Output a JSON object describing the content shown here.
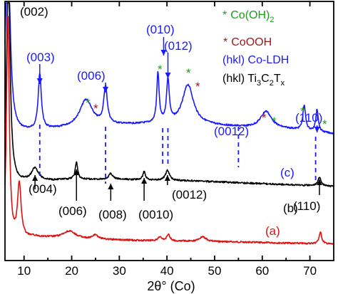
{
  "chart_data": {
    "type": "line",
    "xlabel": "2θ° (Co)",
    "ylabel": "",
    "xlim": [
      6,
      75
    ],
    "x_ticks": [
      10,
      20,
      30,
      40,
      50,
      60,
      70
    ],
    "grid": false,
    "colors": {
      "c": "#1a1aff",
      "b": "#000000",
      "a": "#e01010",
      "co_oh2": "#18a018",
      "coooh": "#a01818"
    },
    "series": [
      {
        "name": "(c)",
        "color": "#1a1aff",
        "peaks": [
          {
            "x": 6.6,
            "h": 280,
            "w": 0.55
          },
          {
            "x": 13.3,
            "h": 78,
            "w": 0.4
          },
          {
            "x": 23.0,
            "h": 38,
            "w": 1.6
          },
          {
            "x": 27.1,
            "h": 52,
            "w": 0.45
          },
          {
            "x": 38.1,
            "h": 70,
            "w": 0.3
          },
          {
            "x": 40.2,
            "h": 60,
            "w": 0.35
          },
          {
            "x": 44.4,
            "h": 56,
            "w": 1.4
          },
          {
            "x": 60.8,
            "h": 24,
            "w": 1.4
          },
          {
            "x": 68.8,
            "h": 35,
            "w": 0.35
          },
          {
            "x": 71.5,
            "h": 32,
            "w": 0.3
          }
        ],
        "baseline": [
          [
            6,
            0
          ],
          [
            10,
            4
          ],
          [
            20,
            10
          ],
          [
            30,
            14
          ],
          [
            35,
            15
          ],
          [
            48,
            14
          ],
          [
            58,
            10
          ],
          [
            66,
            8
          ],
          [
            75,
            2
          ]
        ]
      },
      {
        "name": "(b)",
        "color": "#000000",
        "peaks": [
          {
            "x": 6.7,
            "h": 300,
            "w": 0.45
          },
          {
            "x": 12.3,
            "h": 18,
            "w": 0.9
          },
          {
            "x": 21.0,
            "h": 24,
            "w": 0.3
          },
          {
            "x": 28.2,
            "h": 8,
            "w": 0.5
          },
          {
            "x": 35.2,
            "h": 12,
            "w": 0.3
          },
          {
            "x": 40.1,
            "h": 14,
            "w": 0.5
          },
          {
            "x": 72.0,
            "h": 12,
            "w": 0.4
          }
        ],
        "baseline": [
          [
            6,
            0
          ],
          [
            10,
            6
          ],
          [
            20,
            10
          ],
          [
            30,
            10
          ],
          [
            45,
            8
          ],
          [
            60,
            4
          ],
          [
            75,
            0
          ]
        ]
      },
      {
        "name": "(a)",
        "color": "#e01010",
        "peaks": [
          {
            "x": 6.6,
            "h": 320,
            "w": 0.35
          },
          {
            "x": 9.0,
            "h": 78,
            "w": 0.45
          },
          {
            "x": 19.5,
            "h": 10,
            "w": 1.5
          },
          {
            "x": 25.0,
            "h": 6,
            "w": 0.6
          },
          {
            "x": 38.5,
            "h": 5,
            "w": 0.5
          },
          {
            "x": 40.3,
            "h": 9,
            "w": 0.4
          },
          {
            "x": 47.5,
            "h": 7,
            "w": 0.8
          },
          {
            "x": 72.2,
            "h": 16,
            "w": 0.35
          }
        ],
        "baseline": [
          [
            6,
            0
          ],
          [
            12,
            10
          ],
          [
            20,
            8
          ],
          [
            35,
            5
          ],
          [
            55,
            3
          ],
          [
            75,
            0
          ]
        ]
      }
    ]
  },
  "labels": {
    "curve_c": "(c)",
    "curve_b": "(b)",
    "curve_a": "(a)",
    "ti_002": "(002)",
    "ldh_003": "(003)",
    "ldh_006": "(006)",
    "ldh_010": "(010)",
    "ldh_012": "(012)",
    "ldh_0012": "(0012)",
    "ldh_110": "(110)",
    "ti_004": "(004)",
    "ti_006": "(006)",
    "ti_008": "(008)",
    "ti_0010": "(0010)",
    "ti_0012": "(0012)",
    "ti_110": "(110)",
    "star": "*"
  },
  "legend": {
    "co_oh2_marker": "*",
    "co_oh2_text": "Co(OH)",
    "co_oh2_sub": "2",
    "coooh_marker": "*",
    "coooh_text": "CoOOH",
    "ldh_text": "(hkl) Co-LDH",
    "ti_prefix": "(hkl) Ti",
    "ti_sub1": "3",
    "ti_c": "C",
    "ti_sub2": "2",
    "ti_t": "T",
    "ti_sub3": "x"
  }
}
